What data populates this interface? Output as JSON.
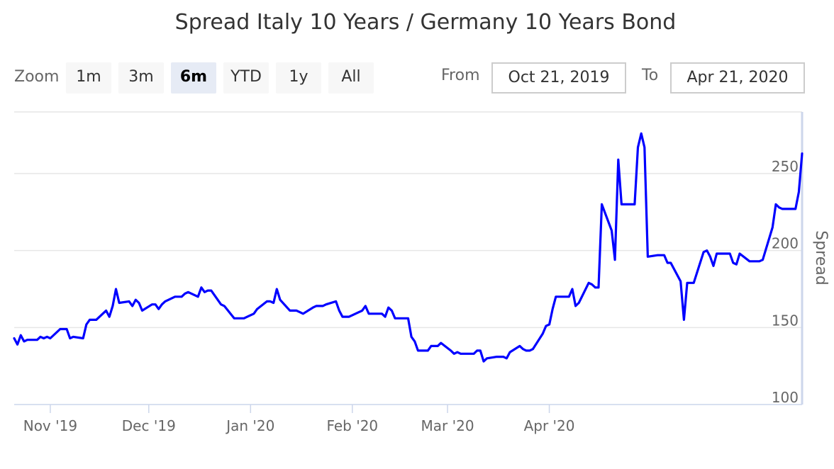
{
  "title": "Spread Italy 10 Years / Germany 10 Years Bond",
  "toolbar": {
    "zoom_label": "Zoom",
    "buttons": [
      {
        "label": "1m",
        "active": false
      },
      {
        "label": "3m",
        "active": false
      },
      {
        "label": "6m",
        "active": true
      },
      {
        "label": "YTD",
        "active": false
      },
      {
        "label": "1y",
        "active": false
      },
      {
        "label": "All",
        "active": false
      }
    ],
    "from_label": "From",
    "from_value": "Oct 21, 2019",
    "to_label": "To",
    "to_value": "Apr 21, 2020"
  },
  "colors": {
    "series": "#0000ff",
    "grid": "#e6e6e6",
    "axis": "#ccd6eb",
    "text": "#666666"
  },
  "chart_data": {
    "type": "line",
    "ylabel": "Spread",
    "ylim": [
      100,
      290
    ],
    "yticks": [
      100,
      150,
      200,
      250
    ],
    "xticks": [
      {
        "label": "Nov '19",
        "date": "2019-11-01"
      },
      {
        "label": "Dec '19",
        "date": "2019-12-01"
      },
      {
        "label": "Jan '20",
        "date": "2020-01-01"
      },
      {
        "label": "Feb '20",
        "date": "2020-02-01"
      },
      {
        "label": "Mar '20",
        "date": "2020-03-01"
      },
      {
        "label": "Apr '20",
        "date": "2020-04-01"
      }
    ],
    "series": [
      {
        "points": [
          [
            "2019-10-21",
            143
          ],
          [
            "2019-10-22",
            139
          ],
          [
            "2019-10-23",
            145
          ],
          [
            "2019-10-24",
            141
          ],
          [
            "2019-10-25",
            142
          ],
          [
            "2019-10-28",
            142
          ],
          [
            "2019-10-29",
            144
          ],
          [
            "2019-10-30",
            143
          ],
          [
            "2019-10-31",
            144
          ],
          [
            "2019-11-01",
            143
          ],
          [
            "2019-11-04",
            149
          ],
          [
            "2019-11-05",
            149
          ],
          [
            "2019-11-06",
            149
          ],
          [
            "2019-11-07",
            143
          ],
          [
            "2019-11-08",
            144
          ],
          [
            "2019-11-11",
            143
          ],
          [
            "2019-11-12",
            152
          ],
          [
            "2019-11-13",
            155
          ],
          [
            "2019-11-14",
            155
          ],
          [
            "2019-11-15",
            155
          ],
          [
            "2019-11-18",
            161
          ],
          [
            "2019-11-19",
            157
          ],
          [
            "2019-11-20",
            164
          ],
          [
            "2019-11-21",
            175
          ],
          [
            "2019-11-22",
            166
          ],
          [
            "2019-11-25",
            167
          ],
          [
            "2019-11-26",
            164
          ],
          [
            "2019-11-27",
            168
          ],
          [
            "2019-11-28",
            166
          ],
          [
            "2019-11-29",
            161
          ],
          [
            "2019-12-02",
            165
          ],
          [
            "2019-12-03",
            165
          ],
          [
            "2019-12-04",
            162
          ],
          [
            "2019-12-05",
            165
          ],
          [
            "2019-12-06",
            167
          ],
          [
            "2019-12-09",
            170
          ],
          [
            "2019-12-10",
            170
          ],
          [
            "2019-12-11",
            170
          ],
          [
            "2019-12-12",
            172
          ],
          [
            "2019-12-13",
            173
          ],
          [
            "2019-12-16",
            170
          ],
          [
            "2019-12-17",
            176
          ],
          [
            "2019-12-18",
            173
          ],
          [
            "2019-12-19",
            174
          ],
          [
            "2019-12-20",
            174
          ],
          [
            "2019-12-23",
            165
          ],
          [
            "2019-12-24",
            164
          ],
          [
            "2019-12-27",
            156
          ],
          [
            "2019-12-30",
            156
          ],
          [
            "2019-12-31",
            157
          ],
          [
            "2020-01-02",
            159
          ],
          [
            "2020-01-03",
            162
          ],
          [
            "2020-01-06",
            167
          ],
          [
            "2020-01-07",
            167
          ],
          [
            "2020-01-08",
            166
          ],
          [
            "2020-01-09",
            175
          ],
          [
            "2020-01-10",
            168
          ],
          [
            "2020-01-13",
            161
          ],
          [
            "2020-01-14",
            161
          ],
          [
            "2020-01-15",
            161
          ],
          [
            "2020-01-16",
            160
          ],
          [
            "2020-01-17",
            159
          ],
          [
            "2020-01-20",
            163
          ],
          [
            "2020-01-21",
            164
          ],
          [
            "2020-01-22",
            164
          ],
          [
            "2020-01-23",
            164
          ],
          [
            "2020-01-24",
            165
          ],
          [
            "2020-01-27",
            167
          ],
          [
            "2020-01-28",
            161
          ],
          [
            "2020-01-29",
            157
          ],
          [
            "2020-01-30",
            157
          ],
          [
            "2020-01-31",
            157
          ],
          [
            "2020-02-03",
            160
          ],
          [
            "2020-02-04",
            161
          ],
          [
            "2020-02-05",
            164
          ],
          [
            "2020-02-06",
            159
          ],
          [
            "2020-02-07",
            159
          ],
          [
            "2020-02-10",
            159
          ],
          [
            "2020-02-11",
            157
          ],
          [
            "2020-02-12",
            163
          ],
          [
            "2020-02-13",
            161
          ],
          [
            "2020-02-14",
            156
          ],
          [
            "2020-02-17",
            156
          ],
          [
            "2020-02-18",
            156
          ],
          [
            "2020-02-19",
            144
          ],
          [
            "2020-02-20",
            141
          ],
          [
            "2020-02-21",
            135
          ],
          [
            "2020-02-24",
            135
          ],
          [
            "2020-02-25",
            138
          ],
          [
            "2020-02-26",
            138
          ],
          [
            "2020-02-27",
            138
          ],
          [
            "2020-02-28",
            140
          ],
          [
            "2020-03-02",
            135
          ],
          [
            "2020-03-03",
            133
          ],
          [
            "2020-03-04",
            134
          ],
          [
            "2020-03-05",
            133
          ],
          [
            "2020-03-06",
            133
          ],
          [
            "2020-03-09",
            133
          ],
          [
            "2020-03-10",
            135
          ],
          [
            "2020-03-11",
            135
          ],
          [
            "2020-03-12",
            128
          ],
          [
            "2020-03-13",
            130
          ],
          [
            "2020-03-16",
            131
          ],
          [
            "2020-03-17",
            131
          ],
          [
            "2020-03-18",
            131
          ],
          [
            "2020-03-19",
            130
          ],
          [
            "2020-03-20",
            134
          ],
          [
            "2020-03-23",
            138
          ],
          [
            "2020-03-24",
            136
          ],
          [
            "2020-03-25",
            135
          ],
          [
            "2020-03-26",
            135
          ],
          [
            "2020-03-27",
            136
          ],
          [
            "2020-03-30",
            146
          ],
          [
            "2020-03-31",
            151
          ],
          [
            "2020-04-01",
            152
          ],
          [
            "2020-04-02",
            162
          ],
          [
            "2020-04-03",
            170
          ],
          [
            "2020-04-06",
            170
          ],
          [
            "2020-04-07",
            170
          ],
          [
            "2020-04-08",
            175
          ],
          [
            "2020-04-09",
            164
          ],
          [
            "2020-04-10",
            166
          ],
          [
            "2020-04-13",
            179
          ],
          [
            "2020-04-14",
            178
          ],
          [
            "2020-04-15",
            176
          ],
          [
            "2020-04-16",
            176
          ],
          [
            "2020-04-17",
            230
          ],
          [
            "2020-04-20",
            213
          ],
          [
            "2020-04-21",
            194
          ],
          [
            "2020-04-22",
            259
          ],
          [
            "2020-04-23",
            230
          ],
          [
            "2020-04-24",
            230
          ],
          [
            "2020-04-27",
            230
          ],
          [
            "2020-04-28",
            267
          ],
          [
            "2020-04-29",
            276
          ],
          [
            "2020-04-30",
            267
          ],
          [
            "2020-05-01",
            196
          ],
          [
            "2020-05-04",
            197
          ],
          [
            "2020-05-05",
            197
          ],
          [
            "2020-05-06",
            197
          ],
          [
            "2020-05-07",
            192
          ],
          [
            "2020-05-08",
            192
          ],
          [
            "2020-05-11",
            180
          ],
          [
            "2020-05-12",
            155
          ],
          [
            "2020-05-13",
            179
          ],
          [
            "2020-05-14",
            179
          ],
          [
            "2020-05-15",
            179
          ],
          [
            "2020-05-18",
            199
          ],
          [
            "2020-05-19",
            200
          ],
          [
            "2020-05-20",
            196
          ],
          [
            "2020-05-21",
            190
          ],
          [
            "2020-05-22",
            198
          ],
          [
            "2020-05-25",
            198
          ],
          [
            "2020-05-26",
            198
          ],
          [
            "2020-05-27",
            192
          ],
          [
            "2020-05-28",
            191
          ],
          [
            "2020-05-29",
            198
          ],
          [
            "2020-06-01",
            193
          ],
          [
            "2020-06-02",
            193
          ],
          [
            "2020-06-03",
            193
          ],
          [
            "2020-06-04",
            193
          ],
          [
            "2020-06-05",
            194
          ],
          [
            "2020-06-08",
            215
          ],
          [
            "2020-06-09",
            230
          ],
          [
            "2020-06-10",
            228
          ],
          [
            "2020-06-11",
            227
          ],
          [
            "2020-06-12",
            227
          ],
          [
            "2020-06-15",
            227
          ],
          [
            "2020-06-16",
            238
          ],
          [
            "2020-06-17",
            263
          ]
        ]
      }
    ]
  }
}
